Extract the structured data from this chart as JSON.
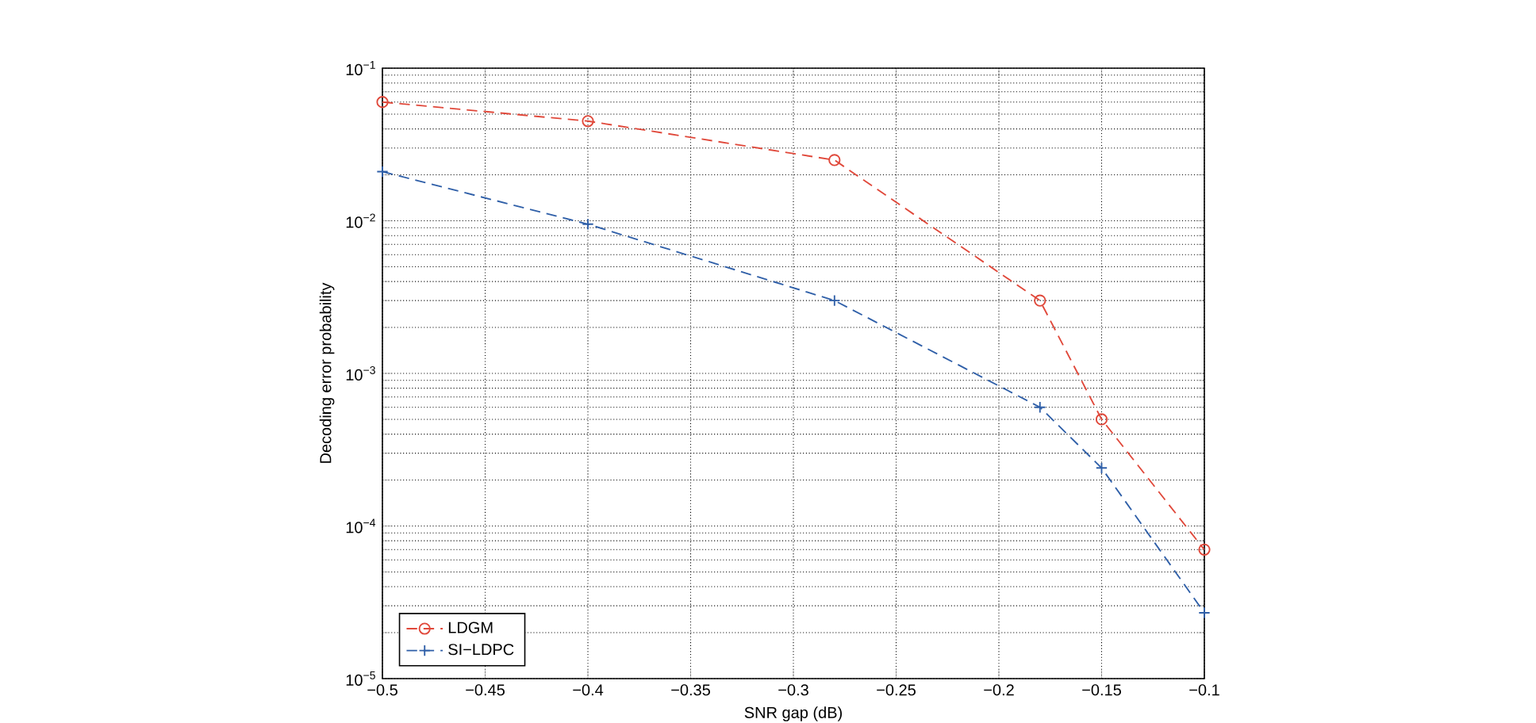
{
  "chart_data": {
    "type": "line",
    "xlabel": "SNR gap (dB)",
    "ylabel": "Decoding error probability",
    "xlim": [
      -0.5,
      -0.1
    ],
    "ylim": [
      1e-05,
      0.1
    ],
    "log": "y",
    "grid": true,
    "legend": "bottom left",
    "line_style": "dashed",
    "xticks": [
      {
        "value": -0.5,
        "label": "−0.5"
      },
      {
        "value": -0.45,
        "label": "−0.45"
      },
      {
        "value": -0.4,
        "label": "−0.4"
      },
      {
        "value": -0.35,
        "label": "−0.35"
      },
      {
        "value": -0.3,
        "label": "−0.3"
      },
      {
        "value": -0.25,
        "label": "−0.25"
      },
      {
        "value": -0.2,
        "label": "−0.2"
      },
      {
        "value": -0.15,
        "label": "−0.15"
      },
      {
        "value": -0.1,
        "label": "−0.1"
      }
    ],
    "yticks": [
      {
        "value": 1e-05,
        "label": "10$^{−5}$"
      },
      {
        "value": 0.0001,
        "label": "10$^{−4}$"
      },
      {
        "value": 0.001,
        "label": "10$^{−3}$"
      },
      {
        "value": 0.01,
        "label": "10$^{−2}$"
      },
      {
        "value": 0.1,
        "label": "10$^{−1}$"
      }
    ],
    "series": [
      {
        "name": "LDGM",
        "color": "#e0483a",
        "marker": "circle",
        "x": [
          -0.5,
          -0.4,
          -0.28,
          -0.18,
          -0.15,
          -0.1
        ],
        "values": [
          0.06,
          0.045,
          0.025,
          0.003,
          0.0005,
          7e-05
        ]
      },
      {
        "name": "SI−LDPC",
        "color": "#2f5fa8",
        "marker": "cross",
        "x": [
          -0.5,
          -0.4,
          -0.28,
          -0.18,
          -0.15,
          -0.1
        ],
        "values": [
          0.021,
          0.0095,
          0.003,
          0.0006,
          0.00024,
          2.7e-05
        ]
      }
    ]
  }
}
